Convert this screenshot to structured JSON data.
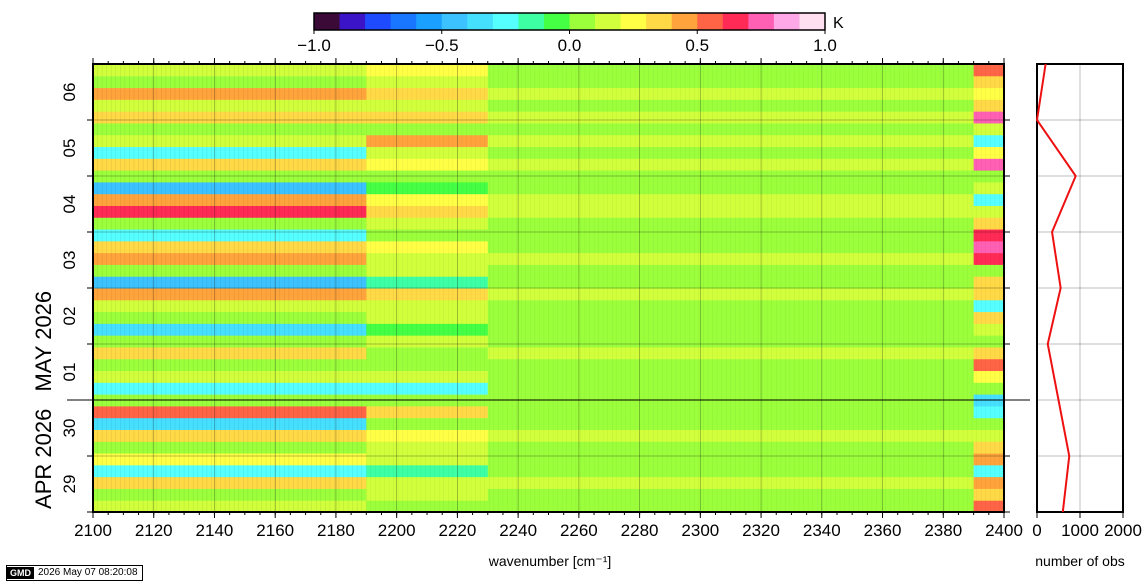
{
  "chart_data": [
    {
      "type": "heatmap",
      "xlabel": "wavenumber [cm⁻¹]",
      "xlim": [
        2100,
        2400
      ],
      "x_ticks": [
        "2100",
        "2120",
        "2140",
        "2160",
        "2180",
        "2200",
        "2220",
        "2240",
        "2260",
        "2280",
        "2300",
        "2320",
        "2340",
        "2360",
        "2380",
        "2400"
      ],
      "y_day_labels": [
        "29",
        "30",
        "01",
        "02",
        "03",
        "04",
        "05",
        "06"
      ],
      "y_month_labels": [
        "APR 2026",
        "MAY 2026"
      ],
      "colorbar": {
        "unit": "K",
        "range": [
          -1.0,
          1.0
        ],
        "ticks": [
          "−1.0",
          "−0.5",
          "0.0",
          "0.5",
          "1.0"
        ],
        "colors": [
          "#3b0a36",
          "#3c14c8",
          "#1f4bff",
          "#1976ff",
          "#1aa0ff",
          "#3cc3ff",
          "#46e0ff",
          "#55ffff",
          "#3dffa4",
          "#44ff44",
          "#9cff3c",
          "#d2ff3c",
          "#ffff46",
          "#ffd946",
          "#ffa43c",
          "#ff6446",
          "#ff2a55",
          "#ff60b4",
          "#ffa8e8",
          "#ffe0f0"
        ]
      },
      "bands": [
        {
          "from": 2100,
          "to": 2190,
          "values": [
            0.1,
            0.05,
            0.35,
            -0.3,
            0.2,
            0.0,
            0.3,
            -0.4,
            0.5,
            0.0,
            -0.3,
            0.1,
            0.0,
            0.3,
            0.0,
            -0.35,
            0.0,
            0.1,
            0.45,
            -0.5,
            0.05,
            0.4,
            0.3,
            -0.3,
            0.0,
            0.6,
            0.4,
            -0.5,
            0.0,
            0.3,
            -0.3,
            0.1,
            0.0,
            0.3,
            0.15,
            0.4,
            0.0,
            0.1
          ]
        },
        {
          "from": 2190,
          "to": 2230,
          "values": [
            0.0,
            0.1,
            0.1,
            -0.2,
            0.1,
            0.1,
            0.2,
            0.0,
            0.3,
            0.0,
            -0.3,
            0.1,
            0.0,
            0.0,
            0.1,
            -0.1,
            0.1,
            0.1,
            0.3,
            -0.2,
            0.1,
            0.15,
            0.2,
            0.0,
            0.1,
            0.3,
            0.2,
            -0.1,
            0.0,
            0.2,
            0.1,
            0.4,
            0.0,
            0.3,
            0.1,
            0.35,
            0.1,
            0.2
          ]
        },
        {
          "from": 2230,
          "to": 2390,
          "values": [
            0.0,
            0.0,
            0.1,
            0.0,
            0.05,
            0.0,
            0.1,
            0.0,
            0.05,
            0.0,
            0.0,
            0.05,
            0.0,
            0.1,
            0.0,
            0.0,
            0.0,
            0.05,
            0.15,
            0.0,
            0.0,
            0.1,
            0.05,
            0.0,
            0.0,
            0.15,
            0.1,
            0.0,
            0.0,
            0.1,
            0.0,
            0.15,
            0.0,
            0.1,
            0.0,
            0.1,
            0.0,
            0.05
          ]
        },
        {
          "from": 2390,
          "to": 2400,
          "values": [
            0.5,
            0.3,
            0.4,
            -0.3,
            0.4,
            0.35,
            0.1,
            0.0,
            -0.3,
            -0.4,
            0.0,
            0.2,
            0.5,
            0.3,
            0.0,
            0.1,
            0.3,
            -0.3,
            0.3,
            0.3,
            0.0,
            0.6,
            0.75,
            0.6,
            0.3,
            0.1,
            -0.3,
            0.1,
            0.0,
            0.7,
            0.2,
            -0.3,
            0.1,
            0.75,
            0.3,
            0.2,
            0.3,
            0.5
          ]
        }
      ]
    },
    {
      "type": "line",
      "xlabel": "number of obs",
      "xlim": [
        0,
        2000
      ],
      "x_ticks": [
        "0",
        "1000",
        "2000"
      ],
      "series": [
        {
          "color": "#ee1111",
          "points": [
            [
              600,
              0
            ],
            [
              750,
              1
            ],
            [
              500,
              2
            ],
            [
              250,
              3
            ],
            [
              550,
              4
            ],
            [
              350,
              5
            ],
            [
              900,
              6
            ],
            [
              0,
              7
            ],
            [
              200,
              8
            ]
          ]
        }
      ]
    }
  ],
  "footer": {
    "logo": "GMD",
    "timestamp": "2026 May 07 08:20:08"
  }
}
